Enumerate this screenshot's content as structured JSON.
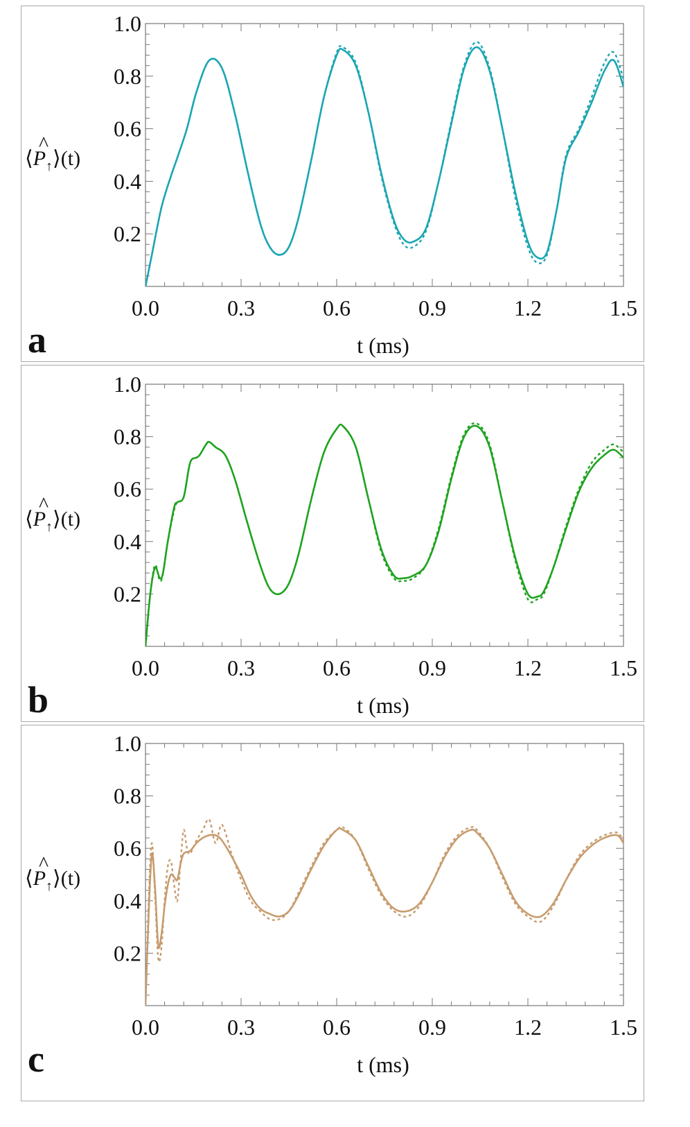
{
  "figure": {
    "xlabel": "t (ms)",
    "ylabel": {
      "open": "⟨",
      "P": "P",
      "hat": "^",
      "sub": "↑",
      "close": "⟩(t)"
    }
  },
  "chart_data": [
    {
      "type": "line",
      "panel_label": "a",
      "xlabel": "t (ms)",
      "ylabel": "⟨P̂↑⟩(t)",
      "xlim": [
        0,
        1.5
      ],
      "ylim": [
        0,
        1.0
      ],
      "xticks": [
        "0.0",
        "0.3",
        "0.6",
        "0.9",
        "1.2",
        "1.5"
      ],
      "yticks": [
        "0.2",
        "0.4",
        "0.6",
        "0.8",
        "1.0"
      ],
      "color": "#1aa6b2",
      "series": [
        {
          "name": "solid",
          "style": "solid",
          "x": [
            0,
            0.02,
            0.05,
            0.08,
            0.1,
            0.13,
            0.16,
            0.2,
            0.24,
            0.28,
            0.32,
            0.36,
            0.39,
            0.42,
            0.45,
            0.48,
            0.52,
            0.56,
            0.6,
            0.62,
            0.66,
            0.7,
            0.74,
            0.78,
            0.81,
            0.84,
            0.88,
            0.92,
            0.96,
            1.0,
            1.04,
            1.08,
            1.12,
            1.16,
            1.2,
            1.23,
            1.26,
            1.29,
            1.32,
            1.36,
            1.4,
            1.44,
            1.47,
            1.5
          ],
          "y": [
            0.0,
            0.12,
            0.3,
            0.42,
            0.49,
            0.6,
            0.74,
            0.86,
            0.83,
            0.66,
            0.44,
            0.24,
            0.15,
            0.12,
            0.15,
            0.26,
            0.48,
            0.72,
            0.88,
            0.9,
            0.84,
            0.66,
            0.43,
            0.25,
            0.18,
            0.17,
            0.22,
            0.4,
            0.62,
            0.83,
            0.91,
            0.82,
            0.6,
            0.36,
            0.17,
            0.11,
            0.13,
            0.29,
            0.49,
            0.59,
            0.7,
            0.82,
            0.86,
            0.76
          ]
        },
        {
          "name": "dotted",
          "style": "dotted",
          "x": [
            0,
            0.02,
            0.05,
            0.08,
            0.1,
            0.13,
            0.16,
            0.2,
            0.24,
            0.28,
            0.32,
            0.36,
            0.39,
            0.42,
            0.45,
            0.48,
            0.52,
            0.56,
            0.6,
            0.62,
            0.66,
            0.7,
            0.74,
            0.78,
            0.81,
            0.84,
            0.88,
            0.92,
            0.96,
            1.0,
            1.04,
            1.08,
            1.12,
            1.16,
            1.2,
            1.23,
            1.26,
            1.29,
            1.32,
            1.36,
            1.4,
            1.44,
            1.47,
            1.5
          ],
          "y": [
            0.0,
            0.12,
            0.3,
            0.42,
            0.49,
            0.6,
            0.74,
            0.86,
            0.83,
            0.66,
            0.44,
            0.24,
            0.15,
            0.12,
            0.15,
            0.26,
            0.48,
            0.72,
            0.89,
            0.91,
            0.85,
            0.66,
            0.42,
            0.24,
            0.16,
            0.15,
            0.21,
            0.4,
            0.63,
            0.84,
            0.93,
            0.83,
            0.6,
            0.34,
            0.15,
            0.09,
            0.12,
            0.29,
            0.5,
            0.6,
            0.72,
            0.85,
            0.89,
            0.79
          ]
        }
      ]
    },
    {
      "type": "line",
      "panel_label": "b",
      "xlabel": "t (ms)",
      "ylabel": "⟨P̂↑⟩(t)",
      "xlim": [
        0,
        1.5
      ],
      "ylim": [
        0,
        1.0
      ],
      "xticks": [
        "0.0",
        "0.3",
        "0.6",
        "0.9",
        "1.2",
        "1.5"
      ],
      "yticks": [
        "0.2",
        "0.4",
        "0.6",
        "0.8",
        "1.0"
      ],
      "color": "#1fa31f",
      "series": [
        {
          "name": "solid",
          "style": "solid",
          "x": [
            0,
            0.015,
            0.03,
            0.045,
            0.055,
            0.07,
            0.09,
            0.1,
            0.12,
            0.14,
            0.16,
            0.17,
            0.19,
            0.2,
            0.22,
            0.25,
            0.28,
            0.32,
            0.36,
            0.39,
            0.42,
            0.45,
            0.48,
            0.52,
            0.56,
            0.6,
            0.62,
            0.66,
            0.7,
            0.74,
            0.78,
            0.81,
            0.84,
            0.88,
            0.92,
            0.96,
            1.0,
            1.04,
            1.08,
            1.12,
            1.16,
            1.2,
            1.23,
            1.25,
            1.28,
            1.32,
            1.36,
            1.4,
            1.44,
            1.47,
            1.5
          ],
          "y": [
            0.0,
            0.2,
            0.3,
            0.26,
            0.28,
            0.4,
            0.53,
            0.55,
            0.57,
            0.7,
            0.72,
            0.73,
            0.77,
            0.78,
            0.76,
            0.73,
            0.64,
            0.47,
            0.31,
            0.22,
            0.2,
            0.24,
            0.35,
            0.56,
            0.74,
            0.83,
            0.84,
            0.76,
            0.56,
            0.37,
            0.27,
            0.26,
            0.27,
            0.31,
            0.44,
            0.64,
            0.8,
            0.84,
            0.76,
            0.55,
            0.34,
            0.2,
            0.19,
            0.21,
            0.3,
            0.45,
            0.59,
            0.68,
            0.73,
            0.75,
            0.72
          ]
        },
        {
          "name": "dotted",
          "style": "dotted",
          "x": [
            0,
            0.015,
            0.03,
            0.045,
            0.055,
            0.07,
            0.09,
            0.1,
            0.12,
            0.14,
            0.16,
            0.17,
            0.19,
            0.2,
            0.22,
            0.25,
            0.28,
            0.32,
            0.36,
            0.39,
            0.42,
            0.45,
            0.48,
            0.52,
            0.56,
            0.6,
            0.62,
            0.66,
            0.7,
            0.74,
            0.78,
            0.81,
            0.84,
            0.88,
            0.92,
            0.96,
            1.0,
            1.04,
            1.08,
            1.12,
            1.16,
            1.2,
            1.23,
            1.25,
            1.28,
            1.32,
            1.36,
            1.4,
            1.44,
            1.47,
            1.5
          ],
          "y": [
            0.0,
            0.2,
            0.31,
            0.25,
            0.28,
            0.4,
            0.52,
            0.55,
            0.57,
            0.7,
            0.72,
            0.73,
            0.77,
            0.78,
            0.76,
            0.73,
            0.64,
            0.47,
            0.31,
            0.22,
            0.2,
            0.24,
            0.35,
            0.56,
            0.74,
            0.83,
            0.84,
            0.76,
            0.56,
            0.36,
            0.26,
            0.25,
            0.26,
            0.31,
            0.45,
            0.65,
            0.81,
            0.85,
            0.77,
            0.55,
            0.33,
            0.18,
            0.18,
            0.2,
            0.3,
            0.46,
            0.6,
            0.7,
            0.75,
            0.77,
            0.74
          ]
        }
      ]
    },
    {
      "type": "line",
      "panel_label": "c",
      "xlabel": "t (ms)",
      "ylabel": "⟨P̂↑⟩(t)",
      "xlim": [
        0,
        1.5
      ],
      "ylim": [
        0,
        1.0
      ],
      "xticks": [
        "0.0",
        "0.3",
        "0.6",
        "0.9",
        "1.2",
        "1.5"
      ],
      "yticks": [
        "0.2",
        "0.4",
        "0.6",
        "0.8",
        "1.0"
      ],
      "color": "#c79c6e",
      "series": [
        {
          "name": "solid",
          "style": "solid",
          "x": [
            0,
            0.01,
            0.02,
            0.03,
            0.04,
            0.05,
            0.06,
            0.07,
            0.08,
            0.09,
            0.1,
            0.11,
            0.12,
            0.14,
            0.16,
            0.18,
            0.2,
            0.22,
            0.24,
            0.27,
            0.3,
            0.33,
            0.36,
            0.39,
            0.42,
            0.45,
            0.48,
            0.52,
            0.56,
            0.6,
            0.62,
            0.66,
            0.7,
            0.74,
            0.78,
            0.82,
            0.86,
            0.9,
            0.94,
            0.98,
            1.02,
            1.04,
            1.08,
            1.12,
            1.16,
            1.2,
            1.24,
            1.28,
            1.32,
            1.36,
            1.4,
            1.44,
            1.48,
            1.5
          ],
          "y": [
            0.0,
            0.35,
            0.58,
            0.45,
            0.23,
            0.27,
            0.38,
            0.46,
            0.5,
            0.49,
            0.48,
            0.54,
            0.58,
            0.59,
            0.62,
            0.64,
            0.65,
            0.65,
            0.63,
            0.57,
            0.5,
            0.42,
            0.37,
            0.35,
            0.34,
            0.36,
            0.42,
            0.52,
            0.61,
            0.67,
            0.67,
            0.63,
            0.53,
            0.43,
            0.37,
            0.36,
            0.39,
            0.47,
            0.57,
            0.64,
            0.67,
            0.66,
            0.6,
            0.5,
            0.4,
            0.35,
            0.34,
            0.39,
            0.48,
            0.56,
            0.61,
            0.64,
            0.65,
            0.62
          ]
        },
        {
          "name": "dotted",
          "style": "dotted",
          "x": [
            0,
            0.01,
            0.02,
            0.03,
            0.04,
            0.05,
            0.06,
            0.07,
            0.08,
            0.09,
            0.1,
            0.11,
            0.12,
            0.13,
            0.14,
            0.16,
            0.18,
            0.2,
            0.22,
            0.24,
            0.27,
            0.3,
            0.33,
            0.36,
            0.39,
            0.42,
            0.45,
            0.48,
            0.52,
            0.56,
            0.6,
            0.62,
            0.66,
            0.7,
            0.74,
            0.78,
            0.82,
            0.86,
            0.9,
            0.94,
            0.98,
            1.02,
            1.04,
            1.08,
            1.12,
            1.16,
            1.2,
            1.24,
            1.28,
            1.32,
            1.36,
            1.4,
            1.44,
            1.48,
            1.5
          ],
          "y": [
            0.0,
            0.4,
            0.62,
            0.42,
            0.18,
            0.22,
            0.4,
            0.53,
            0.55,
            0.46,
            0.4,
            0.55,
            0.67,
            0.6,
            0.58,
            0.63,
            0.67,
            0.71,
            0.62,
            0.69,
            0.58,
            0.48,
            0.4,
            0.36,
            0.33,
            0.33,
            0.36,
            0.43,
            0.53,
            0.62,
            0.67,
            0.68,
            0.63,
            0.52,
            0.42,
            0.36,
            0.34,
            0.38,
            0.47,
            0.58,
            0.65,
            0.68,
            0.67,
            0.6,
            0.49,
            0.39,
            0.34,
            0.32,
            0.38,
            0.48,
            0.57,
            0.62,
            0.65,
            0.66,
            0.63
          ]
        }
      ]
    }
  ]
}
